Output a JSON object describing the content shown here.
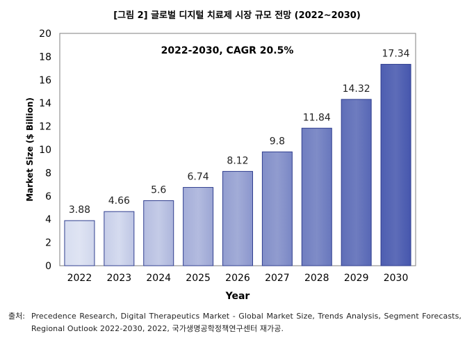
{
  "figure_title": "[그림 2] 글로벌 디지털 치료제 시장 규모 전망 (2022~2030)",
  "source_label": "출처:",
  "source_text": "Precedence Research, Digital Therapeutics Market - Global Market Size, Trends Analysis, Segment Forecasts, Regional Outlook 2022-2030, 2022, 국가생명공학정책연구센터 재가공.",
  "chart_data": {
    "type": "bar",
    "annotation": "2022-2030, CAGR 20.5%",
    "xlabel": "Year",
    "ylabel": "Market Size ($ Billion)",
    "categories": [
      "2022",
      "2023",
      "2024",
      "2025",
      "2026",
      "2027",
      "2028",
      "2029",
      "2030"
    ],
    "values": [
      3.88,
      4.66,
      5.6,
      6.74,
      8.12,
      9.8,
      11.84,
      14.32,
      17.34
    ],
    "data_labels": [
      "3.88",
      "4.66",
      "5.6",
      "6.74",
      "8.12",
      "9.8",
      "11.84",
      "14.32",
      "17.34"
    ],
    "ylim": [
      0,
      20
    ],
    "yticks": [
      "0",
      "2",
      "4",
      "6",
      "8",
      "10",
      "12",
      "14",
      "16",
      "18",
      "20"
    ],
    "grid": false,
    "legend": "none",
    "colors": {
      "bar_light": "#dfe4f3",
      "bar_dark": "#4657ad",
      "bar_border": "#2f3e8f",
      "frame": "#7f7f7f"
    }
  }
}
